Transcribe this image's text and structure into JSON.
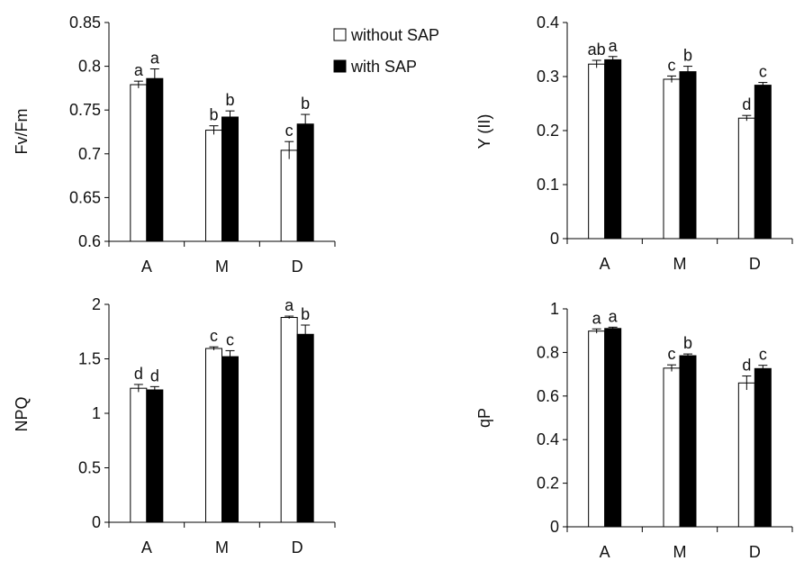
{
  "legend": {
    "entries": [
      {
        "label": "without SAP",
        "fill": "#ffffff"
      },
      {
        "label": "with SAP",
        "fill": "#000000"
      }
    ]
  },
  "chart_data": [
    {
      "id": "fvfm",
      "type": "bar",
      "ylabel": "Fv/Fm",
      "ylim": [
        0.6,
        0.85
      ],
      "yticks": [
        0.6,
        0.65,
        0.7,
        0.75,
        0.8,
        0.85
      ],
      "ytick_labels": [
        "0.6",
        "0.65",
        "0.7",
        "0.75",
        "0.8",
        "0.85"
      ],
      "categories": [
        "A",
        "M",
        "D"
      ],
      "series": [
        {
          "name": "without SAP",
          "color": "#ffffff",
          "values": [
            0.779,
            0.727,
            0.704
          ],
          "errors": [
            0.004,
            0.005,
            0.01
          ],
          "labels": [
            "a",
            "b",
            "c"
          ]
        },
        {
          "name": "with SAP",
          "color": "#000000",
          "values": [
            0.786,
            0.742,
            0.734
          ],
          "errors": [
            0.011,
            0.007,
            0.011
          ],
          "labels": [
            "a",
            "b",
            "b"
          ]
        }
      ]
    },
    {
      "id": "yii",
      "type": "bar",
      "ylabel": "Y (II)",
      "ylim": [
        0,
        0.4
      ],
      "yticks": [
        0,
        0.1,
        0.2,
        0.3,
        0.4
      ],
      "ytick_labels": [
        "0",
        "0.1",
        "0.2",
        "0.3",
        "0.4"
      ],
      "categories": [
        "A",
        "M",
        "D"
      ],
      "series": [
        {
          "name": "without SAP",
          "color": "#ffffff",
          "values": [
            0.323,
            0.295,
            0.223
          ],
          "errors": [
            0.007,
            0.006,
            0.005
          ],
          "labels": [
            "ab",
            "c",
            "d"
          ]
        },
        {
          "name": "with SAP",
          "color": "#000000",
          "values": [
            0.331,
            0.309,
            0.284
          ],
          "errors": [
            0.006,
            0.01,
            0.005
          ],
          "labels": [
            "a",
            "b",
            "c"
          ]
        }
      ]
    },
    {
      "id": "npq",
      "type": "bar",
      "ylabel": "NPQ",
      "ylim": [
        0,
        2
      ],
      "yticks": [
        0,
        0.5,
        1,
        1.5,
        2
      ],
      "ytick_labels": [
        "0",
        "0.5",
        "1",
        "1.5",
        "2"
      ],
      "categories": [
        "A",
        "M",
        "D"
      ],
      "series": [
        {
          "name": "without SAP",
          "color": "#ffffff",
          "values": [
            1.23,
            1.595,
            1.88
          ],
          "errors": [
            0.035,
            0.015,
            0.012
          ],
          "labels": [
            "d",
            "c",
            "a"
          ]
        },
        {
          "name": "with SAP",
          "color": "#000000",
          "values": [
            1.215,
            1.52,
            1.725
          ],
          "errors": [
            0.03,
            0.055,
            0.085
          ],
          "labels": [
            "d",
            "c",
            "b"
          ]
        }
      ]
    },
    {
      "id": "qp",
      "type": "bar",
      "ylabel": "qP",
      "ylim": [
        0,
        1
      ],
      "yticks": [
        0,
        0.2,
        0.4,
        0.6,
        0.8,
        1
      ],
      "ytick_labels": [
        "0",
        "0.2",
        "0.4",
        "0.6",
        "0.8",
        "1"
      ],
      "categories": [
        "A",
        "M",
        "D"
      ],
      "series": [
        {
          "name": "without SAP",
          "color": "#ffffff",
          "values": [
            0.898,
            0.728,
            0.66
          ],
          "errors": [
            0.01,
            0.015,
            0.032
          ],
          "labels": [
            "a",
            "c",
            "d"
          ]
        },
        {
          "name": "with SAP",
          "color": "#000000",
          "values": [
            0.91,
            0.785,
            0.726
          ],
          "errors": [
            0.006,
            0.008,
            0.015
          ],
          "labels": [
            "a",
            "b",
            "c"
          ]
        }
      ]
    }
  ]
}
